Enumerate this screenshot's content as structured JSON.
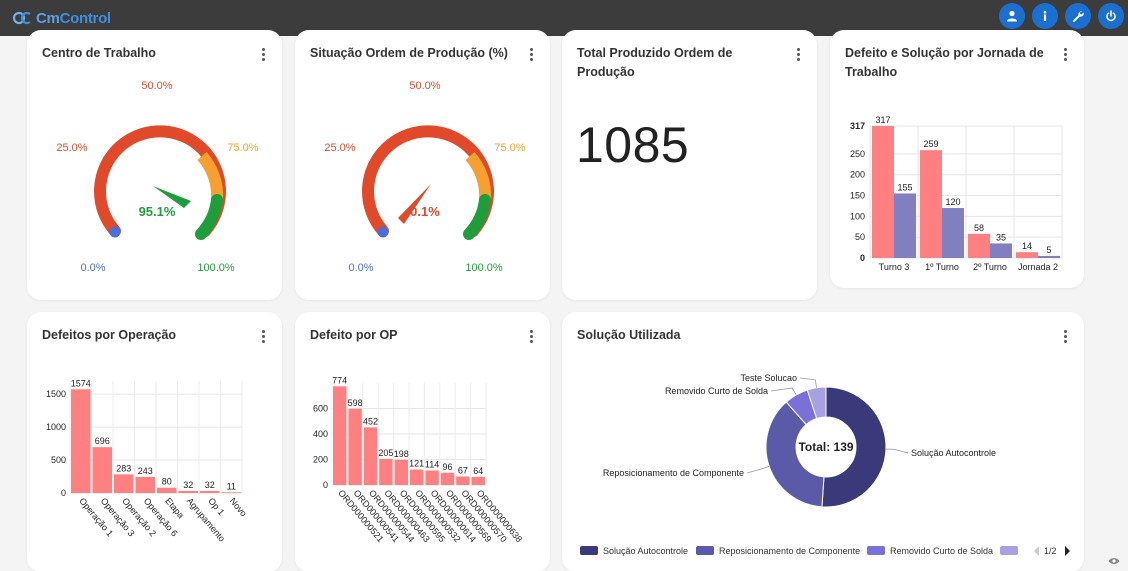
{
  "app": {
    "logo_prefix": "Cm",
    "logo_suffix": "Control"
  },
  "toolbar": {
    "icons": [
      "user-icon",
      "info-icon",
      "wrench-icon",
      "power-icon"
    ]
  },
  "colors": {
    "topbar": "#3c3c3c",
    "accent": "#1a6fd1",
    "red_bar": "#ff8080",
    "purple_bar": "#8080c0",
    "gauge_red": "#e04a2a",
    "gauge_orange": "#f5a030",
    "gauge_green": "#1e9e3a",
    "gauge_blue": "#4a6fd8",
    "donut1": "#3a3a7a",
    "donut2": "#5a5aa8",
    "donut3": "#7a70d8",
    "donut4": "#a8a0e0"
  },
  "cards": {
    "centro": {
      "title": "Centro de Trabalho",
      "value_label": "95.1%",
      "value": 95.1,
      "ticks": {
        "t0": "0.0%",
        "t25": "25.0%",
        "t50": "50.0%",
        "t75": "75.0%",
        "t100": "100.0%"
      }
    },
    "situacao": {
      "title": "Situação Ordem de Produção (%)",
      "value_label": "0.1%",
      "value": 0.1,
      "ticks": {
        "t0": "0.0%",
        "t25": "25.0%",
        "t50": "50.0%",
        "t75": "75.0%",
        "t100": "100.0%"
      }
    },
    "total": {
      "title_line1": "Total Produzido Ordem de",
      "title_line2": "Produção",
      "value": "1085"
    },
    "jornada": {
      "title_line1": "Defeito e Solução por Jornada de",
      "title_line2": "Trabalho"
    },
    "operacao": {
      "title": "Defeitos por Operação"
    },
    "op": {
      "title": "Defeito por OP"
    },
    "solucao": {
      "title": "Solução Utilizada",
      "center_label": "Total: 139",
      "legend_page": "1/2"
    }
  },
  "chart_data": [
    {
      "type": "bar",
      "id": "jornada",
      "categories": [
        "Turno 3",
        "1º Turno",
        "2º Turno",
        "Jornada 2"
      ],
      "series": [
        {
          "values": [
            317,
            259,
            58,
            14
          ]
        },
        {
          "values": [
            155,
            120,
            35,
            5
          ]
        }
      ],
      "ylim": [
        0,
        317
      ],
      "yticks": [
        "0",
        "50",
        "100",
        "150",
        "200",
        "250",
        "317"
      ],
      "grid": true
    },
    {
      "type": "bar",
      "id": "operacao",
      "categories": [
        "Operação 1",
        "Operação 3",
        "Operação 2",
        "Operação 6",
        "Etapa",
        "Agrupamento",
        "Op 1",
        "Novo"
      ],
      "values": [
        1574,
        696,
        283,
        243,
        80,
        32,
        32,
        11
      ],
      "ylim": [
        0,
        1700
      ],
      "yticks": [
        "0",
        "500",
        "1000",
        "1500"
      ],
      "grid": true
    },
    {
      "type": "bar",
      "id": "op",
      "categories": [
        "ORD000000521",
        "ORD000000541",
        "ORD000000544",
        "ORD000000463",
        "ORD000000595",
        "ORD000000532",
        "ORD000000614",
        "ORD000000569",
        "ORD000000570",
        "ORD000000638"
      ],
      "values": [
        774,
        598,
        452,
        205,
        198,
        121,
        114,
        96,
        67,
        64
      ],
      "ylim": [
        0,
        800
      ],
      "yticks": [
        "0",
        "200",
        "400",
        "600"
      ],
      "grid": true
    },
    {
      "type": "pie",
      "id": "solucao",
      "categories": [
        "Solução Autocontrole",
        "Reposicionamento de Componente",
        "Removido Curto de Solda",
        "Teste Solucao"
      ],
      "values": [
        71,
        52,
        9,
        7
      ],
      "legend": [
        "Solução Autocontrole",
        "Reposicionamento de Componente",
        "Removido Curto de Solda"
      ],
      "legend_position": "bottom"
    }
  ]
}
